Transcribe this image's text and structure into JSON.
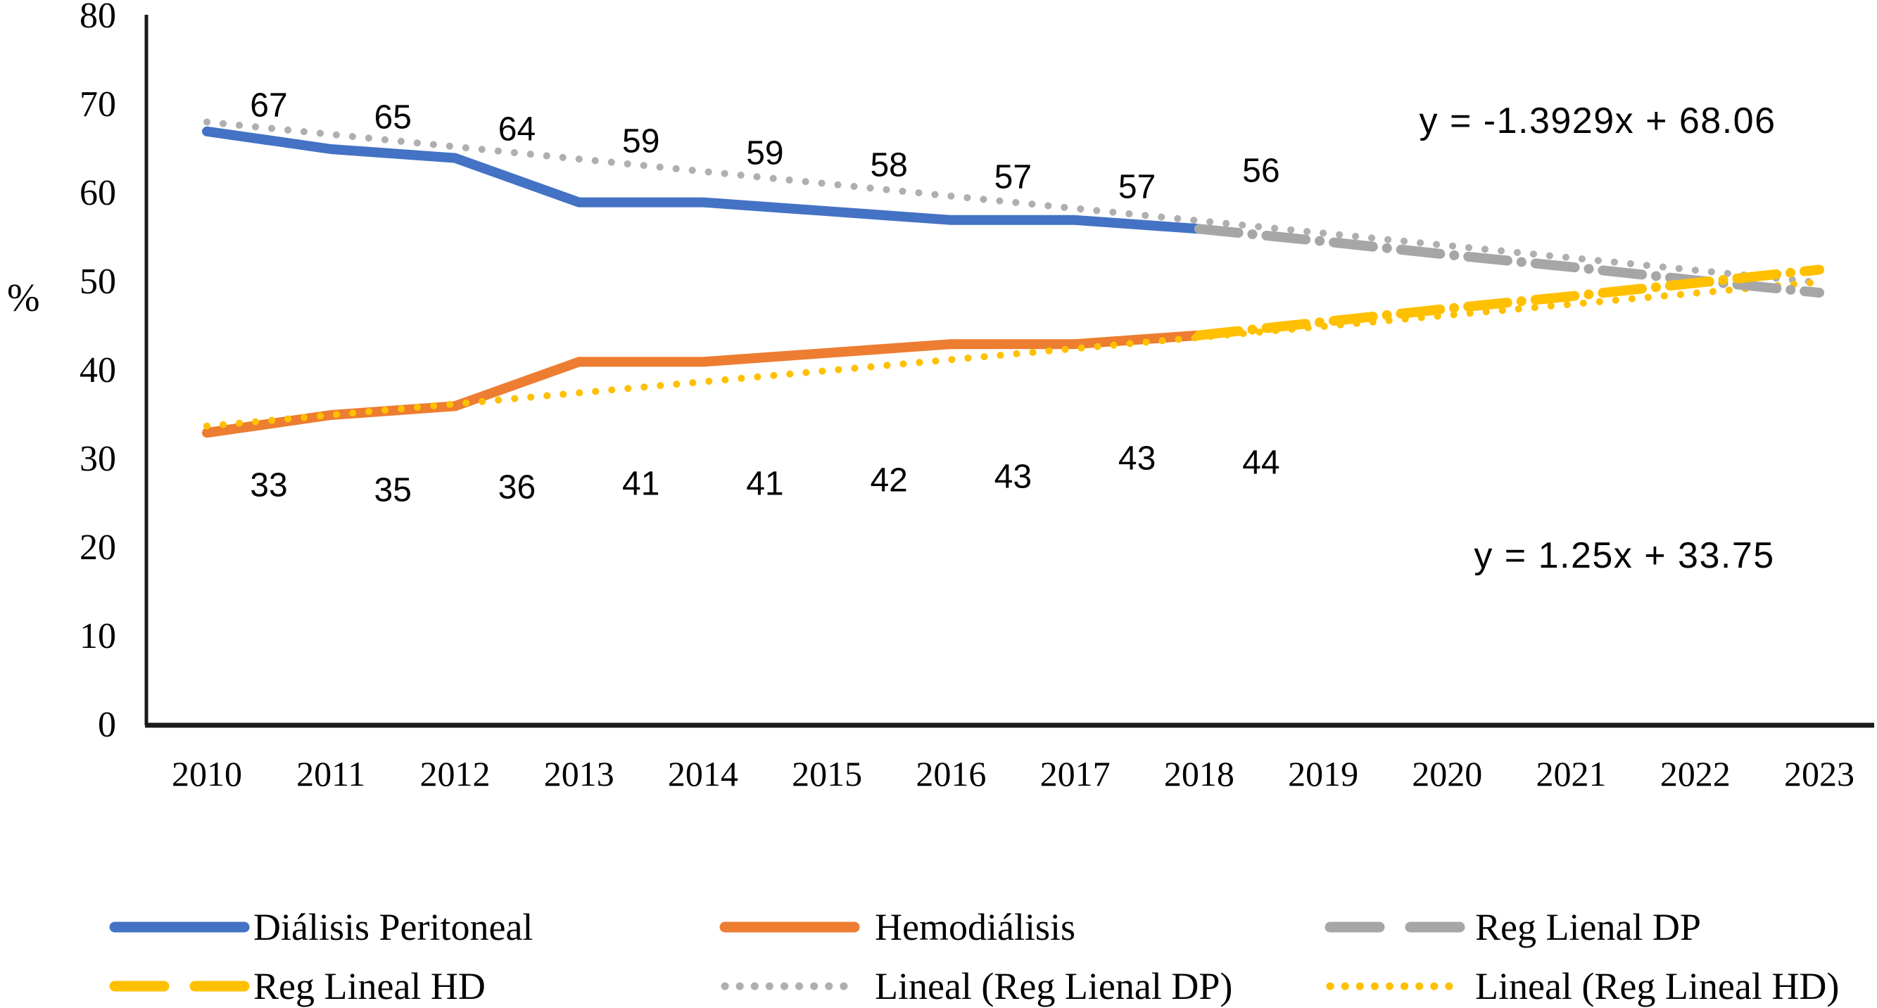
{
  "figure": {
    "background": "#ffffff",
    "axis_color": "#1a1a1a"
  },
  "chart_data": {
    "type": "line",
    "title": "",
    "xlabel": "",
    "ylabel": "%",
    "ylim": [
      0,
      80
    ],
    "ytick_interval": 10,
    "yticks": [
      "80",
      "70",
      "60",
      "50",
      "40",
      "30",
      "20",
      "10",
      "0"
    ],
    "categories": [
      "2010",
      "2011",
      "2012",
      "2013",
      "2014",
      "2015",
      "2016",
      "2017",
      "2018",
      "2019",
      "2020",
      "2021",
      "2022",
      "2023"
    ],
    "grid": false,
    "legend_position": "bottom",
    "series": [
      {
        "name": "Diálisis Peritoneal",
        "style": "solid",
        "color": "#4472C4",
        "x": [
          2010,
          2011,
          2012,
          2013,
          2014,
          2015,
          2016,
          2017,
          2018
        ],
        "values": [
          67,
          65,
          64,
          59,
          59,
          58,
          57,
          57,
          56
        ],
        "data_labels": [
          "67",
          "65",
          "64",
          "59",
          "59",
          "58",
          "57",
          "57",
          "56"
        ],
        "label_position": "above"
      },
      {
        "name": "Hemodiálisis",
        "style": "solid",
        "color": "#ED7D31",
        "x": [
          2010,
          2011,
          2012,
          2013,
          2014,
          2015,
          2016,
          2017,
          2018
        ],
        "values": [
          33,
          35,
          36,
          41,
          41,
          42,
          43,
          43,
          44
        ],
        "data_labels": [
          "33",
          "35",
          "36",
          "41",
          "41",
          "42",
          "43",
          "43",
          "44"
        ],
        "label_position": "below"
      },
      {
        "name": "Reg Lienal DP",
        "style": "dash",
        "color": "#A6A6A6",
        "x": [
          2018,
          2019,
          2020,
          2021,
          2022,
          2023
        ],
        "values": [
          56,
          54.6,
          53.1,
          51.7,
          50.2,
          48.8
        ]
      },
      {
        "name": "Reg Lineal HD",
        "style": "dash",
        "color": "#FFC000",
        "x": [
          2018,
          2019,
          2020,
          2021,
          2022,
          2023
        ],
        "values": [
          44,
          45.5,
          47,
          48.4,
          49.9,
          51.4
        ]
      },
      {
        "name": "Lineal (Reg Lienal DP)",
        "style": "dot",
        "color": "#AFAFAF",
        "x": [
          2010,
          2023
        ],
        "values": [
          68.06,
          49.95
        ],
        "equation": "y = -1.3929x + 68.06"
      },
      {
        "name": "Lineal (Reg Lineal HD)",
        "style": "dot",
        "color": "#FFC000",
        "x": [
          2010,
          2023
        ],
        "values": [
          33.75,
          50.0
        ],
        "equation": "y = 1.25x + 33.75"
      }
    ]
  }
}
